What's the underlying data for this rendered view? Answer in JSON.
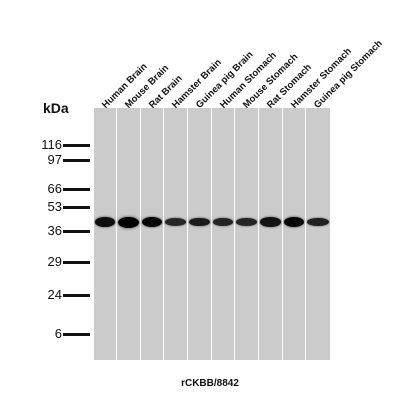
{
  "lanes": [
    {
      "label": "Human Brain",
      "band_intensity": 0.85
    },
    {
      "label": "Mouse Brain",
      "band_intensity": 1.0
    },
    {
      "label": "Rat Brain",
      "band_intensity": 0.9
    },
    {
      "label": "Hamster Brain",
      "band_intensity": 0.55
    },
    {
      "label": "Guinea pig Brain",
      "band_intensity": 0.7
    },
    {
      "label": "Human Stomach",
      "band_intensity": 0.6
    },
    {
      "label": "Mouse Stomach",
      "band_intensity": 0.6
    },
    {
      "label": "Rat Stomach",
      "band_intensity": 0.8
    },
    {
      "label": "Hamster Stomach",
      "band_intensity": 0.9
    },
    {
      "label": "Guinea pig Stomach",
      "band_intensity": 0.65
    }
  ],
  "y_axis_label": "kDa",
  "markers": [
    "116",
    "97",
    "66",
    "53",
    "36",
    "29",
    "24",
    "6"
  ],
  "band_size_kda": 42,
  "caption": "rCKBB/8842",
  "colors": {
    "lane_background": "#cbcbcb",
    "band": "#000000",
    "text": "#111111"
  }
}
